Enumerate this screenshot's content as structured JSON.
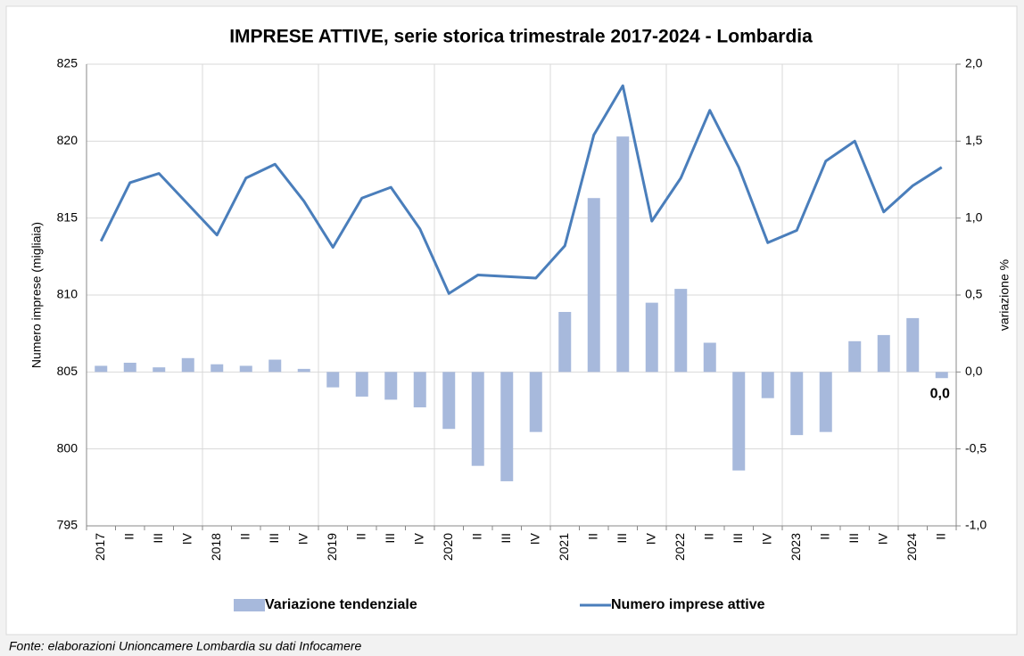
{
  "chart_data": {
    "type": "bar-line",
    "title": "IMPRESE ATTIVE, serie storica trimestrale 2017-2024 - Lombardia",
    "y_label": "Numero imprese (migliaia)",
    "y2_label": "variazione %",
    "source": "Fonte: elaborazioni Unioncamere Lombardia su dati Infocamere",
    "categories": [
      "2017",
      "II",
      "III",
      "IV",
      "2018",
      "II",
      "III",
      "IV",
      "2019",
      "II",
      "III",
      "IV",
      "2020",
      "II",
      "III",
      "IV",
      "2021",
      "II",
      "III",
      "IV",
      "2022",
      "II",
      "III",
      "IV",
      "2023",
      "II",
      "III",
      "IV",
      "2024",
      "II"
    ],
    "series": [
      {
        "name": "Variazione tendenziale",
        "type": "bar",
        "axis": "y2",
        "color": "#a7b9dc",
        "values": [
          0.04,
          0.06,
          0.03,
          0.09,
          0.05,
          0.04,
          0.08,
          0.02,
          -0.1,
          -0.16,
          -0.18,
          -0.23,
          -0.37,
          -0.61,
          -0.71,
          -0.39,
          0.39,
          1.13,
          1.53,
          0.45,
          0.54,
          0.19,
          -0.64,
          -0.17,
          -0.41,
          -0.39,
          0.2,
          0.24,
          0.35,
          -0.04
        ],
        "value_labels": [
          null,
          null,
          null,
          null,
          null,
          null,
          null,
          null,
          null,
          null,
          null,
          null,
          null,
          null,
          null,
          null,
          null,
          null,
          null,
          null,
          null,
          null,
          null,
          null,
          null,
          null,
          null,
          null,
          null,
          "0,0"
        ]
      },
      {
        "name": "Numero imprese attive",
        "type": "line",
        "color": "#4a7ebb",
        "values": [
          813.5,
          817.3,
          817.9,
          815.9,
          813.9,
          817.6,
          818.5,
          816.1,
          813.1,
          816.3,
          817.0,
          814.3,
          810.1,
          811.3,
          811.2,
          811.1,
          813.2,
          820.4,
          823.6,
          814.8,
          817.6,
          822.0,
          818.3,
          813.4,
          814.2,
          818.7,
          820.0,
          815.4,
          817.1,
          818.3
        ]
      }
    ],
    "ylim": [
      795,
      825
    ],
    "yticks": [
      795,
      800,
      805,
      810,
      815,
      820,
      825
    ],
    "y2lim": [
      -1,
      2
    ],
    "y2ticks": [
      {
        "value": -1,
        "label": "-1,0"
      },
      {
        "value": -0.5,
        "label": "-0,5"
      },
      {
        "value": 0,
        "label": "0,0"
      },
      {
        "value": 0.5,
        "label": "0,5"
      },
      {
        "value": 1,
        "label": "1,0"
      },
      {
        "value": 1.5,
        "label": "1,5"
      },
      {
        "value": 2,
        "label": "2,0"
      }
    ],
    "grid": true,
    "legend": "bottom"
  }
}
